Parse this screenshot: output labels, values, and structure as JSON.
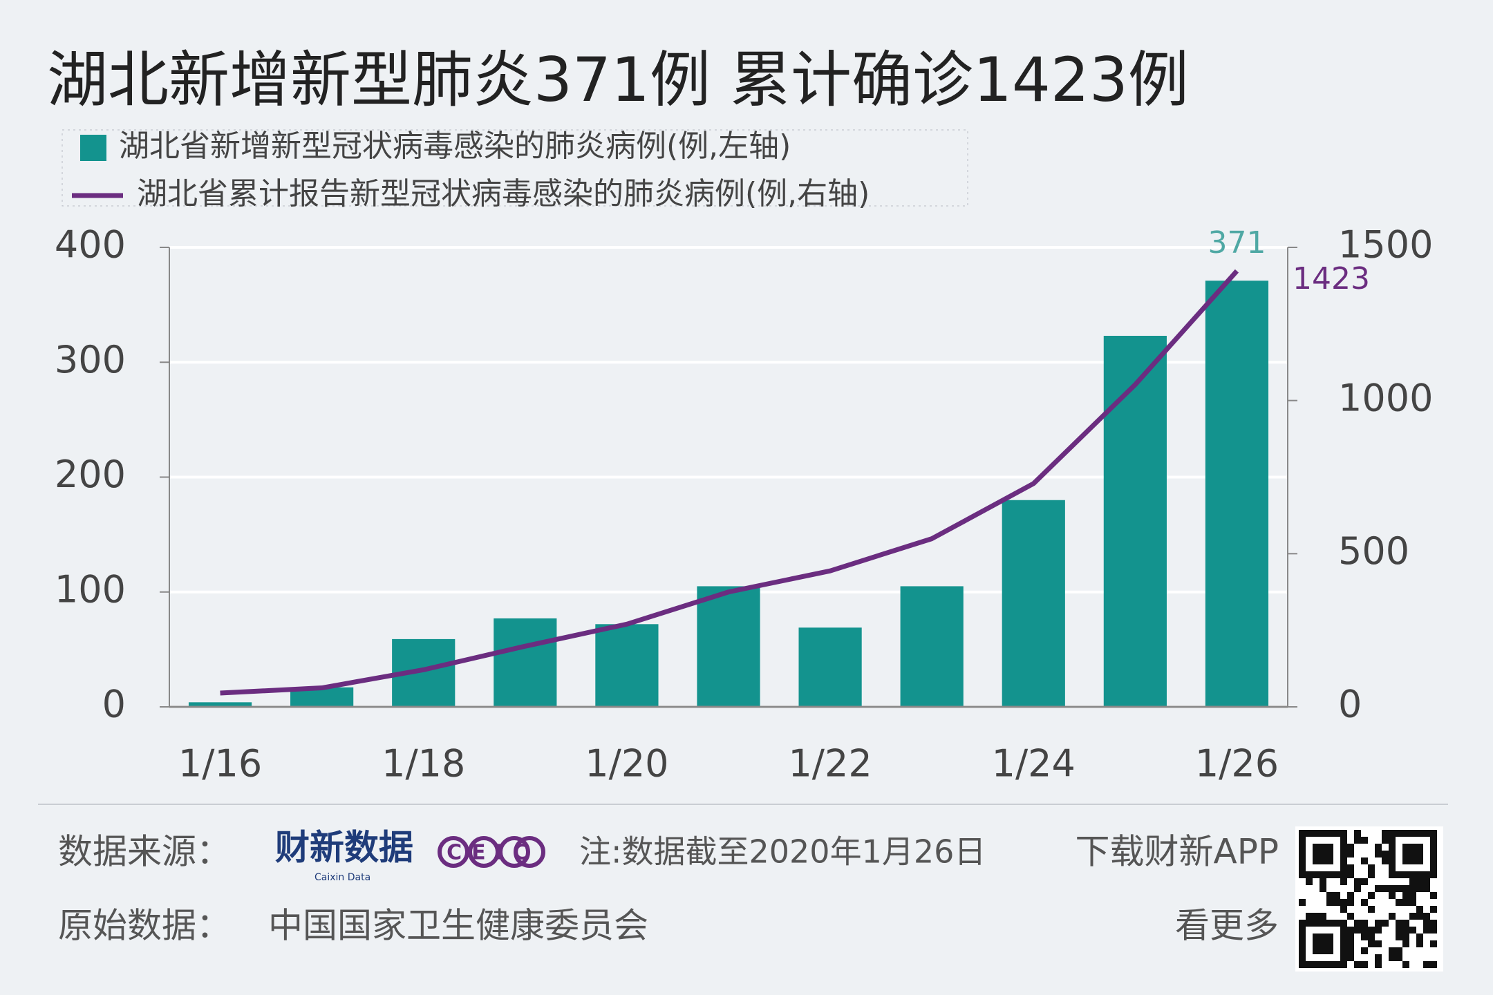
{
  "chart_data": {
    "type": "combo",
    "title": "湖北新增新型肺炎371例 累计确诊1423例",
    "categories": [
      "1/16",
      null,
      "1/18",
      null,
      "1/20",
      null,
      "1/22",
      null,
      "1/24",
      null,
      "1/26"
    ],
    "series": [
      {
        "name": "湖北省新增新型冠状病毒感染的肺炎病例(例,左轴)",
        "type": "bar",
        "color": "#13938e",
        "values": [
          4,
          17,
          59,
          77,
          72,
          105,
          69,
          105,
          180,
          323,
          371
        ]
      },
      {
        "name": "湖北省累计报告新型冠状病毒感染的肺炎病例(例,右轴)",
        "type": "line",
        "axis": "y2",
        "color": "#6b2d80",
        "values": [
          45,
          62,
          121,
          198,
          270,
          375,
          444,
          549,
          729,
          1052,
          1423
        ]
      }
    ],
    "ylim": [
      0,
      400
    ],
    "yticks": [
      0,
      100,
      200,
      300,
      400
    ],
    "y2lim": [
      0,
      1500
    ],
    "y2ticks": [
      0,
      500,
      1000,
      1500
    ],
    "grid": true
  },
  "footer": {
    "source_label": "数据来源：",
    "source_logo": "财新数据",
    "source_logo_sub": "Caixin Data",
    "ceic_logo": "CEIC",
    "note": "注:数据截至2020年1月26日",
    "download": "下载财新APP",
    "raw_label": "原始数据：",
    "raw_source": "中国国家卫生健康委员会",
    "more": "看更多"
  }
}
